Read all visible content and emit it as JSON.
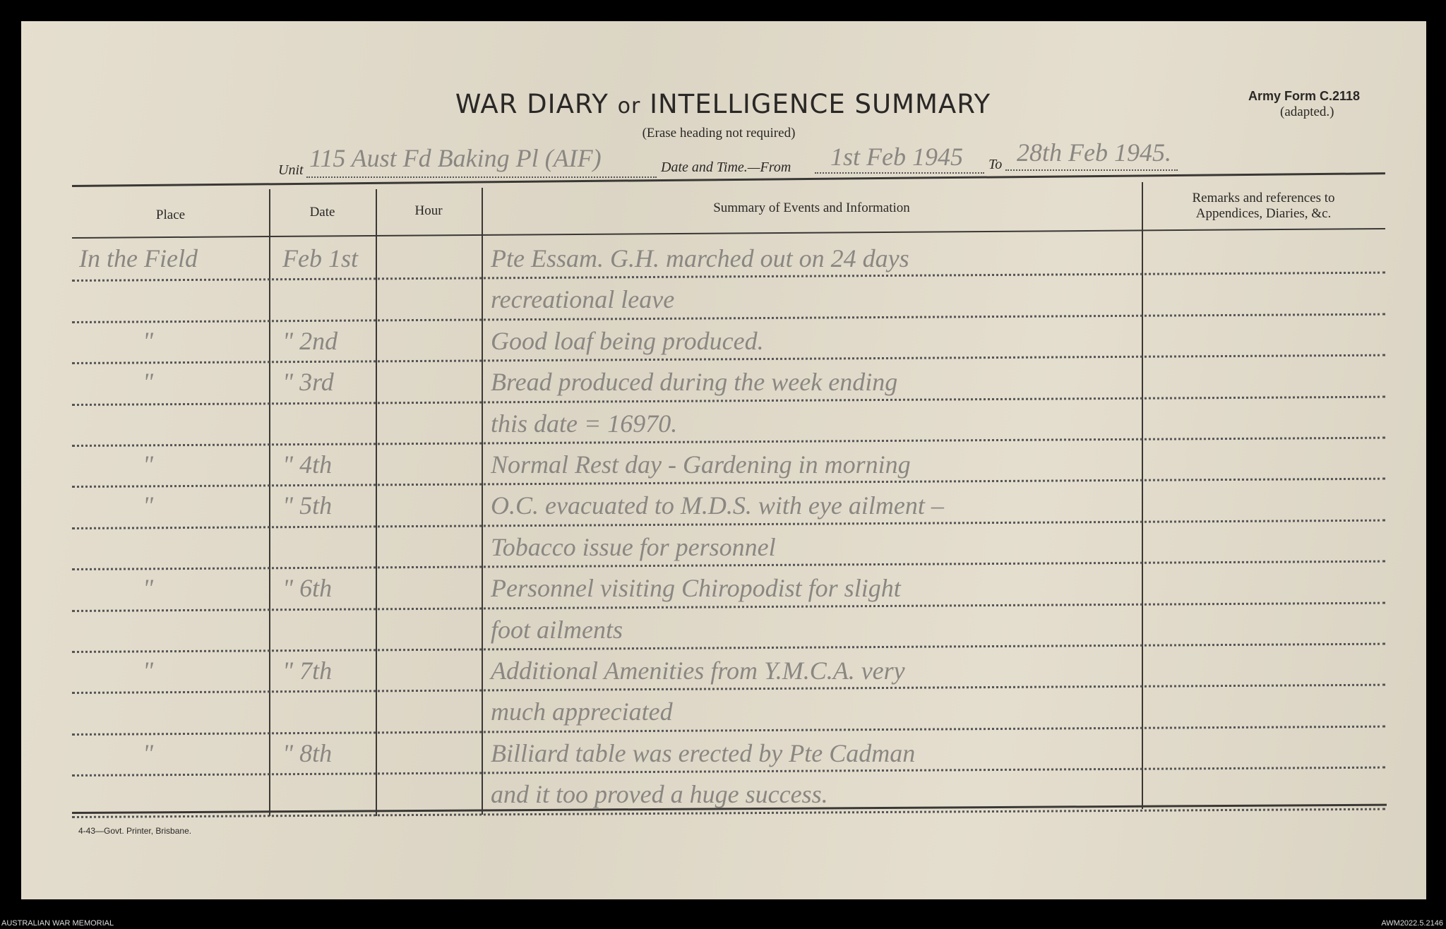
{
  "form": {
    "title_part1": "WAR DIARY",
    "title_or": "or",
    "title_part2": "INTELLIGENCE SUMMARY",
    "erase_note": "(Erase heading not required)",
    "army_form": "Army Form C.2118",
    "adapted": "(adapted.)",
    "unit_label": "Unit",
    "unit_value": "115 Aust Fd Baking Pl (AIF)",
    "date_label": "Date and Time.—From",
    "date_from": "1st Feb 1945",
    "to_label": "To",
    "date_to": "28th Feb 1945.",
    "footer": "4-43—Govt. Printer, Brisbane."
  },
  "table": {
    "headers": {
      "place": "Place",
      "date": "Date",
      "hour": "Hour",
      "summary": "Summary of Events and Information",
      "remarks_1": "Remarks and references to",
      "remarks_2": "Appendices, Diaries, &c."
    },
    "rows": [
      {
        "place": "In the Field",
        "date": "Feb 1st",
        "hour": "",
        "summary": "Pte Essam. G.H. marched out on 24 days",
        "remarks": ""
      },
      {
        "place": "",
        "date": "",
        "hour": "",
        "summary": "recreational leave",
        "remarks": ""
      },
      {
        "place": "\"",
        "date": "\" 2nd",
        "hour": "",
        "summary": "Good loaf being produced.",
        "remarks": ""
      },
      {
        "place": "\"",
        "date": "\" 3rd",
        "hour": "",
        "summary": "Bread produced during the week ending",
        "remarks": ""
      },
      {
        "place": "",
        "date": "",
        "hour": "",
        "summary": "this date = 16970.",
        "remarks": ""
      },
      {
        "place": "\"",
        "date": "\" 4th",
        "hour": "",
        "summary": "Normal Rest day - Gardening in morning",
        "remarks": ""
      },
      {
        "place": "\"",
        "date": "\" 5th",
        "hour": "",
        "summary": "O.C. evacuated to M.D.S. with eye ailment –",
        "remarks": ""
      },
      {
        "place": "",
        "date": "",
        "hour": "",
        "summary": "Tobacco issue for personnel",
        "remarks": ""
      },
      {
        "place": "\"",
        "date": "\" 6th",
        "hour": "",
        "summary": "Personnel visiting Chiropodist for slight",
        "remarks": ""
      },
      {
        "place": "",
        "date": "",
        "hour": "",
        "summary": "foot ailments",
        "remarks": ""
      },
      {
        "place": "\"",
        "date": "\" 7th",
        "hour": "",
        "summary": "Additional Amenities from Y.M.C.A. very",
        "remarks": ""
      },
      {
        "place": "",
        "date": "",
        "hour": "",
        "summary": "much appreciated",
        "remarks": ""
      },
      {
        "place": "\"",
        "date": "\" 8th",
        "hour": "",
        "summary": "Billiard table was erected by Pte Cadman",
        "remarks": ""
      },
      {
        "place": "",
        "date": "",
        "hour": "",
        "summary": "and it too proved a huge success.",
        "remarks": ""
      }
    ]
  },
  "captions": {
    "left": "AUSTRALIAN WAR MEMORIAL",
    "right": "AWM2022.5.2146"
  }
}
